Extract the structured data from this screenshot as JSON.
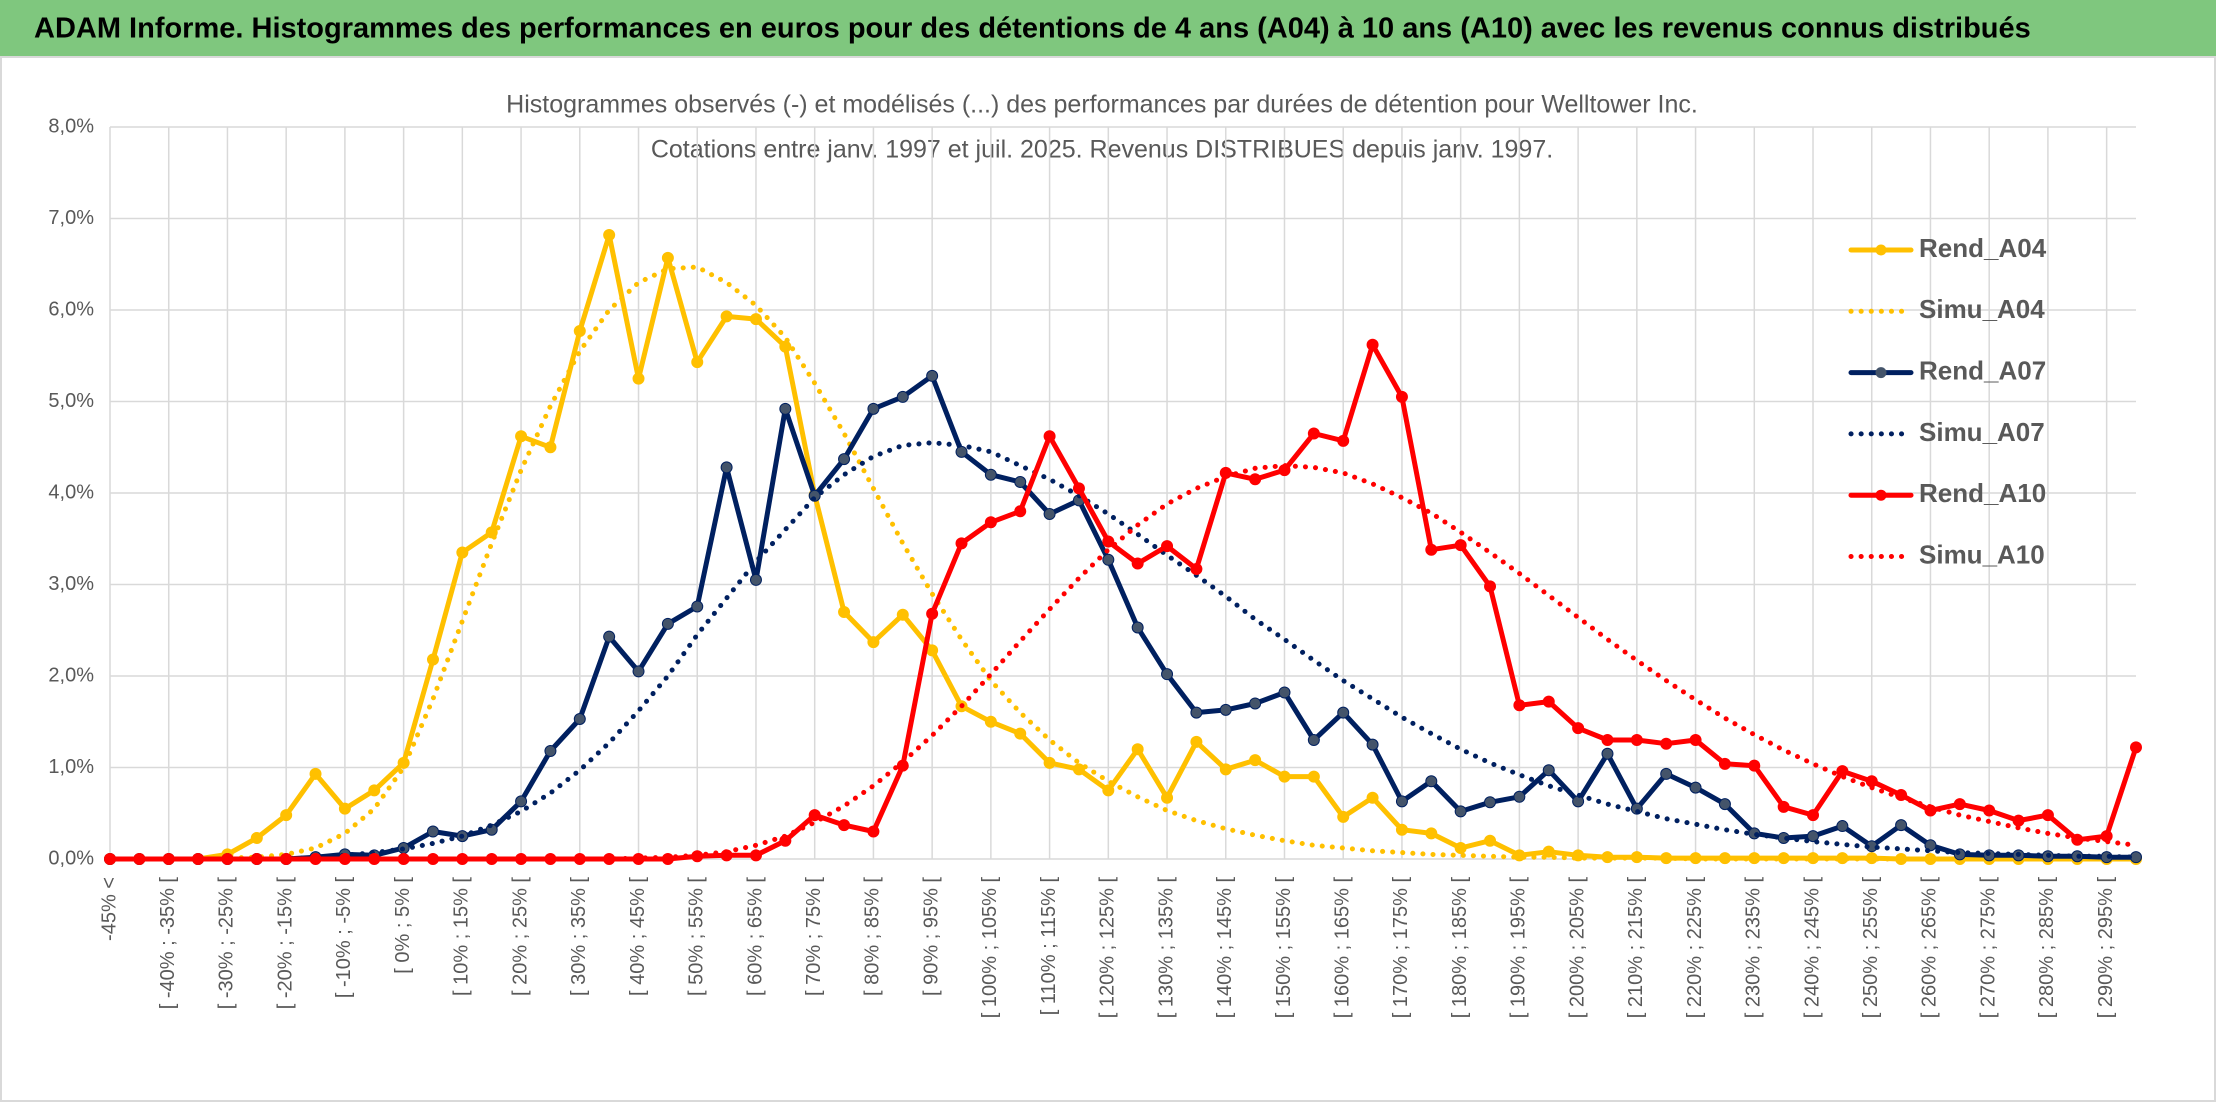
{
  "header": {
    "title": "ADAM Informe. Histogrammes des performances en euros pour des détentions de 4 ans (A04) à 10 ans (A10) avec les revenus connus distribués"
  },
  "chart_data": {
    "type": "line",
    "title": "Histogrammes observés (-) et modélisés (...) des performances par durées de détention pour Welltower Inc.",
    "subtitle": "Cotations entre janv. 1997 et juil. 2025. Revenus DISTRIBUES depuis janv. 1997.",
    "categories": [
      "-45% <",
      null,
      "[ -40% ; -35% [",
      null,
      "[ -30% ; -25% [",
      null,
      "[ -20% ; -15% [",
      null,
      "[ -10% ; -5% [",
      null,
      "[ 0% ; 5% [",
      null,
      "[ 10% ; 15% [",
      null,
      "[ 20% ; 25% [",
      null,
      "[ 30% ; 35% [",
      null,
      "[ 40% ; 45% [",
      null,
      "[ 50% ; 55% [",
      null,
      "[ 60% ; 65% [",
      null,
      "[ 70% ; 75% [",
      null,
      "[ 80% ; 85% [",
      null,
      "[ 90% ; 95% [",
      null,
      "[ 100% ; 105% [",
      null,
      "[ 110% ; 115% [",
      null,
      "[ 120% ; 125% [",
      null,
      "[ 130% ; 135% [",
      null,
      "[ 140% ; 145% [",
      null,
      "[ 150% ; 155% [",
      null,
      "[ 160% ; 165% [",
      null,
      "[ 170% ; 175% [",
      null,
      "[ 180% ; 185% [",
      null,
      "[ 190% ; 195% [",
      null,
      "[ 200% ; 205% [",
      null,
      "[ 210% ; 215% [",
      null,
      "[ 220% ; 225% [",
      null,
      "[ 230% ; 235% [",
      null,
      "[ 240% ; 245% [",
      null,
      "[ 250% ; 255% [",
      null,
      "[ 260% ; 265% [",
      null,
      "[ 270% ; 275% [",
      null,
      "[ 280% ; 285% [",
      null,
      "[ 290% ; 295% [",
      null
    ],
    "ylim": [
      0,
      8
    ],
    "yticks": [
      {
        "value": 0,
        "label": "0,0%"
      },
      {
        "value": 1,
        "label": "1,0%"
      },
      {
        "value": 2,
        "label": "2,0%"
      },
      {
        "value": 3,
        "label": "3,0%"
      },
      {
        "value": 4,
        "label": "4,0%"
      },
      {
        "value": 5,
        "label": "5,0%"
      },
      {
        "value": 6,
        "label": "6,0%"
      },
      {
        "value": 7,
        "label": "7,0%"
      },
      {
        "value": 8,
        "label": "8,0%"
      }
    ],
    "grid": true,
    "legend": "right",
    "series": [
      {
        "name": "Rend_A04",
        "color": "#FFC000",
        "line_style": "solid",
        "values": [
          0,
          0,
          0,
          0,
          0.05,
          0.23,
          0.48,
          0.93,
          0.55,
          0.75,
          1.05,
          2.18,
          3.35,
          3.57,
          4.62,
          4.5,
          5.77,
          6.82,
          5.25,
          6.57,
          5.43,
          5.93,
          5.9,
          5.6,
          3.98,
          2.7,
          2.37,
          2.67,
          2.28,
          1.67,
          1.5,
          1.37,
          1.05,
          0.98,
          0.75,
          1.2,
          0.67,
          1.28,
          0.98,
          1.08,
          0.9,
          0.9,
          0.46,
          0.67,
          0.32,
          0.28,
          0.12,
          0.2,
          0.04,
          0.08,
          0.04,
          0.02,
          0.02,
          0.01,
          0.01,
          0.01,
          0.01,
          0.01,
          0.01,
          0.01,
          0.01,
          0,
          0,
          0,
          0,
          0,
          0,
          0,
          0,
          0
        ]
      },
      {
        "name": "Simu_A04",
        "color": "#FFC000",
        "line_style": "dotted",
        "values": [
          0,
          0,
          0,
          0,
          0.01,
          0.02,
          0.05,
          0.12,
          0.28,
          0.55,
          1.0,
          1.75,
          2.6,
          3.45,
          4.25,
          4.95,
          5.55,
          6.0,
          6.3,
          6.45,
          6.47,
          6.3,
          6.05,
          5.7,
          5.2,
          4.65,
          4.05,
          3.45,
          2.9,
          2.4,
          1.95,
          1.6,
          1.3,
          1.05,
          0.85,
          0.68,
          0.53,
          0.42,
          0.33,
          0.26,
          0.2,
          0.15,
          0.12,
          0.09,
          0.07,
          0.05,
          0.04,
          0.03,
          0.02,
          0.02,
          0.01,
          0.01,
          0.01,
          0.01,
          0,
          0,
          0,
          0,
          0,
          0,
          0,
          0,
          0,
          0,
          0,
          0,
          0,
          0,
          0,
          0
        ]
      },
      {
        "name": "Rend_A07",
        "color": "#002060",
        "line_style": "solid",
        "values": [
          0,
          0,
          0,
          0,
          0,
          0,
          0,
          0.02,
          0.05,
          0.04,
          0.12,
          0.3,
          0.25,
          0.32,
          0.63,
          1.18,
          1.53,
          2.43,
          2.05,
          2.57,
          2.76,
          4.28,
          3.05,
          4.92,
          3.97,
          4.37,
          4.92,
          5.05,
          5.28,
          4.45,
          4.2,
          4.12,
          3.77,
          3.92,
          3.27,
          2.53,
          2.02,
          1.6,
          1.63,
          1.7,
          1.82,
          1.3,
          1.6,
          1.25,
          0.63,
          0.85,
          0.52,
          0.62,
          0.68,
          0.97,
          0.63,
          1.15,
          0.55,
          0.93,
          0.78,
          0.6,
          0.28,
          0.23,
          0.25,
          0.36,
          0.14,
          0.37,
          0.15,
          0.05,
          0.04,
          0.04,
          0.03,
          0.03,
          0.02,
          0.02
        ]
      },
      {
        "name": "Simu_A07",
        "color": "#002060",
        "line_style": "dotted",
        "values": [
          0,
          0,
          0,
          0,
          0,
          0,
          0,
          0.02,
          0.04,
          0.07,
          0.11,
          0.17,
          0.25,
          0.37,
          0.52,
          0.72,
          0.97,
          1.27,
          1.62,
          2.0,
          2.45,
          2.85,
          3.25,
          3.6,
          3.95,
          4.2,
          4.4,
          4.52,
          4.55,
          4.52,
          4.45,
          4.3,
          4.15,
          3.97,
          3.77,
          3.55,
          3.32,
          3.1,
          2.87,
          2.62,
          2.4,
          2.17,
          1.95,
          1.75,
          1.55,
          1.37,
          1.2,
          1.05,
          0.92,
          0.8,
          0.7,
          0.6,
          0.52,
          0.44,
          0.38,
          0.32,
          0.27,
          0.23,
          0.19,
          0.16,
          0.13,
          0.11,
          0.09,
          0.07,
          0.06,
          0.05,
          0.04,
          0.03,
          0.03,
          0.02
        ]
      },
      {
        "name": "Rend_A10",
        "color": "#FF0000",
        "line_style": "solid",
        "values": [
          0,
          0,
          0,
          0,
          0,
          0,
          0,
          0,
          0,
          0,
          0,
          0,
          0,
          0,
          0,
          0,
          0,
          0,
          0,
          0,
          0.03,
          0.04,
          0.04,
          0.2,
          0.48,
          0.37,
          0.3,
          1.02,
          2.68,
          3.45,
          3.68,
          3.8,
          4.62,
          4.05,
          3.47,
          3.23,
          3.42,
          3.17,
          4.22,
          4.15,
          4.25,
          4.65,
          4.57,
          5.62,
          5.05,
          3.38,
          3.43,
          2.98,
          1.68,
          1.72,
          1.43,
          1.3,
          1.3,
          1.26,
          1.3,
          1.04,
          1.02,
          0.57,
          0.48,
          0.96,
          0.85,
          0.7,
          0.53,
          0.6,
          0.53,
          0.42,
          0.48,
          0.21,
          0.25,
          1.22
        ]
      },
      {
        "name": "Simu_A10",
        "color": "#FF0000",
        "line_style": "dotted",
        "values": [
          0,
          0,
          0,
          0,
          0,
          0,
          0,
          0,
          0,
          0,
          0,
          0,
          0,
          0,
          0,
          0,
          0,
          0,
          0.01,
          0.02,
          0.04,
          0.08,
          0.15,
          0.25,
          0.4,
          0.58,
          0.8,
          1.06,
          1.35,
          1.67,
          2.02,
          2.38,
          2.73,
          3.07,
          3.38,
          3.65,
          3.88,
          4.05,
          4.18,
          4.27,
          4.3,
          4.28,
          4.22,
          4.1,
          3.95,
          3.78,
          3.57,
          3.35,
          3.12,
          2.88,
          2.64,
          2.4,
          2.17,
          1.95,
          1.74,
          1.54,
          1.36,
          1.19,
          1.04,
          0.9,
          0.78,
          0.67,
          0.57,
          0.48,
          0.41,
          0.34,
          0.28,
          0.23,
          0.19,
          0.15
        ]
      }
    ]
  }
}
